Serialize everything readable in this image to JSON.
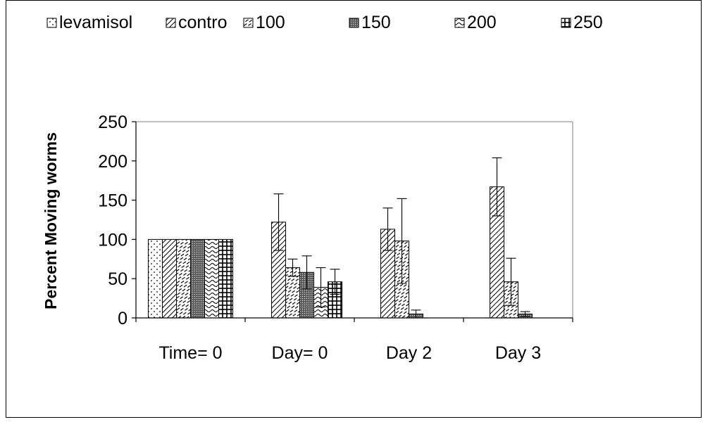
{
  "chart_data": {
    "type": "bar",
    "categories": [
      "Time= 0",
      "Day= 0",
      "Day 2",
      "Day 3"
    ],
    "ylabel": "Percent Moving worms",
    "xlabel": "",
    "ylim": [
      0,
      250
    ],
    "yticks": [
      0,
      50,
      100,
      150,
      200,
      250
    ],
    "legend_position": "top",
    "grid": false,
    "error_bars": true,
    "series": [
      {
        "name": "levamisol",
        "pattern": "dots",
        "values": [
          100,
          0,
          0,
          0
        ],
        "errors": [
          0,
          0,
          0,
          0
        ]
      },
      {
        "name": "contro",
        "pattern": "diag",
        "values": [
          100,
          122,
          113,
          167
        ],
        "errors": [
          0,
          36,
          27,
          37
        ]
      },
      {
        "name": "100",
        "pattern": "dash",
        "values": [
          100,
          64,
          98,
          46
        ],
        "errors": [
          0,
          11,
          54,
          30
        ]
      },
      {
        "name": "150",
        "pattern": "dense",
        "values": [
          100,
          58,
          5,
          5
        ],
        "errors": [
          0,
          21,
          5,
          3
        ]
      },
      {
        "name": "200",
        "pattern": "wave",
        "values": [
          100,
          39,
          0,
          0
        ],
        "errors": [
          0,
          25,
          0,
          0
        ]
      },
      {
        "name": "250",
        "pattern": "grid",
        "values": [
          100,
          46,
          0,
          0
        ],
        "errors": [
          0,
          16,
          0,
          0
        ]
      }
    ]
  }
}
